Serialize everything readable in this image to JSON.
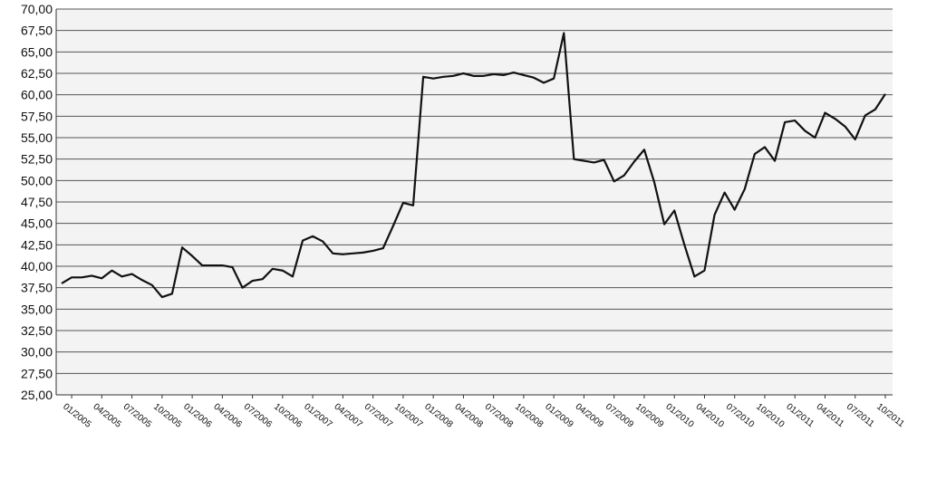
{
  "chart_data": {
    "type": "line",
    "categories": [
      null,
      "01/2005",
      null,
      null,
      "04/2005",
      null,
      null,
      "07/2005",
      null,
      null,
      "10/2005",
      null,
      null,
      "01/2006",
      null,
      null,
      "04/2006",
      null,
      null,
      "07/2006",
      null,
      null,
      "10/2006",
      null,
      null,
      "01/2007",
      null,
      null,
      "04/2007",
      null,
      null,
      "07/2007",
      null,
      null,
      "10/2007",
      null,
      null,
      "01/2008",
      null,
      null,
      "04/2008",
      null,
      null,
      "07/2008",
      null,
      null,
      "10/2008",
      null,
      null,
      "01/2009",
      null,
      null,
      "04/2009",
      null,
      null,
      "07/2009",
      null,
      null,
      "10/2009",
      null,
      null,
      "01/2010",
      null,
      null,
      "04/2010",
      null,
      null,
      "07/2010",
      null,
      null,
      "10/2010",
      null,
      null,
      "01/2011",
      null,
      null,
      "04/2011",
      null,
      null,
      "07/2011",
      null,
      null,
      "10/2011"
    ],
    "series": [
      {
        "color": "#111111",
        "values": [
          38.0,
          38.7,
          38.7,
          38.9,
          38.6,
          39.5,
          38.8,
          39.1,
          38.4,
          37.8,
          36.4,
          36.8,
          42.2,
          41.2,
          40.1,
          40.1,
          40.1,
          39.9,
          37.5,
          38.3,
          38.5,
          39.7,
          39.5,
          38.8,
          43.0,
          43.5,
          42.9,
          41.5,
          41.4,
          41.5,
          41.6,
          41.8,
          42.1,
          44.7,
          47.4,
          47.1,
          62.1,
          61.9,
          62.1,
          62.2,
          62.5,
          62.2,
          62.2,
          62.4,
          62.3,
          62.6,
          62.3,
          62.0,
          61.4,
          61.9,
          67.2,
          52.5,
          52.3,
          52.1,
          52.4,
          49.9,
          50.6,
          52.2,
          53.6,
          49.8,
          44.9,
          46.5,
          42.5,
          38.8,
          39.5,
          46.0,
          48.6,
          46.6,
          49.0,
          53.1,
          53.9,
          52.3,
          56.8,
          57.0,
          55.8,
          55.0,
          57.9,
          57.2,
          56.3,
          54.8,
          57.6,
          58.3,
          60.1
        ]
      }
    ],
    "ylim": [
      25,
      70
    ],
    "yticks": [
      {
        "value": 25,
        "label": "25,00"
      },
      {
        "value": 27.5,
        "label": "27,50"
      },
      {
        "value": 30,
        "label": "30,00"
      },
      {
        "value": 32.5,
        "label": "32,50"
      },
      {
        "value": 35,
        "label": "35,00"
      },
      {
        "value": 37.5,
        "label": "37,50"
      },
      {
        "value": 40,
        "label": "40,00"
      },
      {
        "value": 42.5,
        "label": "42,50"
      },
      {
        "value": 45,
        "label": "45,00"
      },
      {
        "value": 47.5,
        "label": "47,50"
      },
      {
        "value": 50,
        "label": "50,00"
      },
      {
        "value": 52.5,
        "label": "52,50"
      },
      {
        "value": 55,
        "label": "55,00"
      },
      {
        "value": 57.5,
        "label": "57,50"
      },
      {
        "value": 60,
        "label": "60,00"
      },
      {
        "value": 62.5,
        "label": "62,50"
      },
      {
        "value": 65,
        "label": "65,00"
      },
      {
        "value": 67.5,
        "label": "67,50"
      },
      {
        "value": 70,
        "label": "70,00"
      }
    ],
    "grid": true
  }
}
